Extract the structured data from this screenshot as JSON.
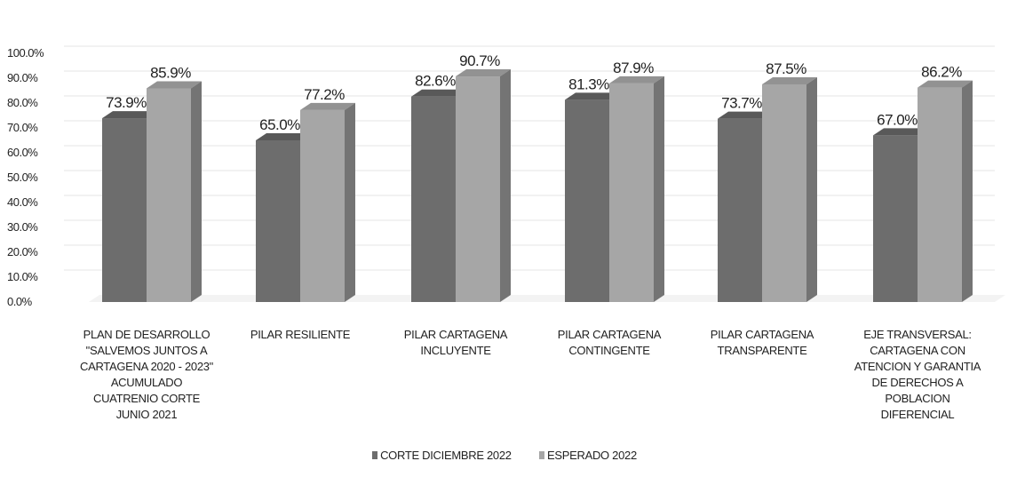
{
  "chart_data": {
    "type": "bar",
    "categories": [
      "PLAN DE DESARROLLO\n\"SALVEMOS JUNTOS A\nCARTAGENA 2020 - 2023\"\nACUMULADO\nCUATRENIO CORTE\nJUNIO 2021",
      "PILAR RESILIENTE",
      "PILAR CARTAGENA\nINCLUYENTE",
      "PILAR CARTAGENA\nCONTINGENTE",
      "PILAR CARTAGENA\nTRANSPARENTE",
      "EJE TRANSVERSAL:\nCARTAGENA CON\nATENCION Y GARANTIA\nDE DERECHOS A\nPOBLACION\nDIFERENCIAL"
    ],
    "series": [
      {
        "name": "CORTE DICIEMBRE 2022",
        "values": [
          73.9,
          65.0,
          82.6,
          81.3,
          73.7,
          67.0
        ],
        "labels": [
          "73.9%",
          "65.0%",
          "82.6%",
          "81.3%",
          "73.7%",
          "67.0%"
        ],
        "color": "#6d6d6d"
      },
      {
        "name": "ESPERADO 2022",
        "values": [
          85.9,
          77.2,
          90.7,
          87.9,
          87.5,
          86.2
        ],
        "labels": [
          "85.9%",
          "77.2%",
          "90.7%",
          "87.9%",
          "87.5%",
          "86.2%"
        ],
        "color": "#a6a6a6"
      }
    ],
    "yticks": [
      "0.0%",
      "10.0%",
      "20.0%",
      "30.0%",
      "40.0%",
      "50.0%",
      "60.0%",
      "70.0%",
      "80.0%",
      "90.0%",
      "100.0%"
    ],
    "ylim": [
      0,
      100
    ],
    "grid": true,
    "legend_position": "bottom",
    "style": "3d-column"
  }
}
